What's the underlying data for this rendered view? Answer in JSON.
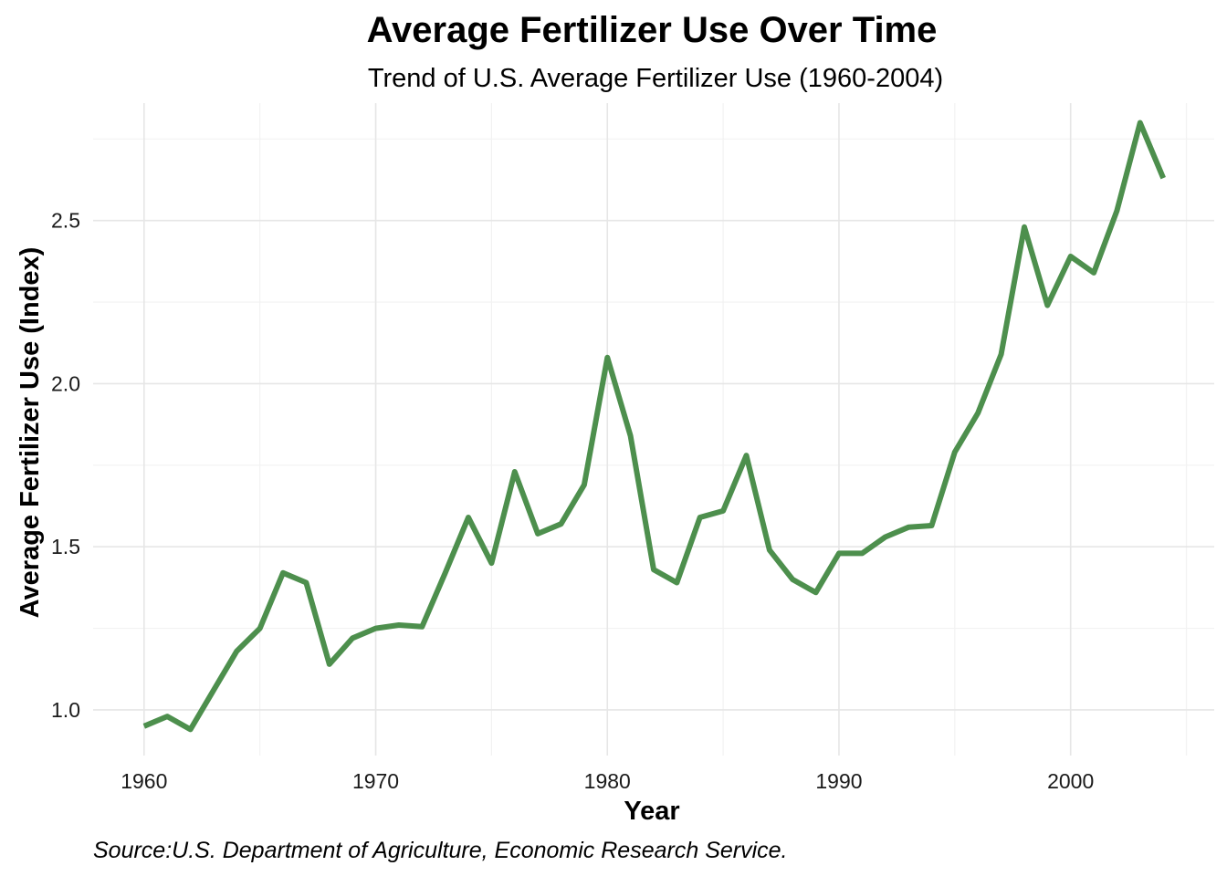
{
  "chart_data": {
    "type": "line",
    "title": "Average Fertilizer Use Over Time",
    "subtitle": "Trend of U.S. Average Fertilizer Use (1960-2004)",
    "xlabel": "Year",
    "ylabel": "Average Fertilizer Use (Index)",
    "caption": "Source:U.S. Department of Agriculture, Economic Research Service.",
    "line_color": "#4d8f4d",
    "grid": true,
    "xlim": [
      1957.8,
      2006.2
    ],
    "ylim": [
      0.86,
      2.86
    ],
    "x_ticks": [
      1960,
      1970,
      1980,
      1990,
      2000
    ],
    "y_ticks": [
      1.0,
      1.5,
      2.0,
      2.5
    ],
    "y_tick_labels": [
      "1.0",
      "1.5",
      "2.0",
      "2.5"
    ],
    "series": [
      {
        "x": [
          1960,
          1961,
          1962,
          1963,
          1964,
          1965,
          1966,
          1967,
          1968,
          1969,
          1970,
          1971,
          1972,
          1973,
          1974,
          1975,
          1976,
          1977,
          1978,
          1979,
          1980,
          1981,
          1982,
          1983,
          1984,
          1985,
          1986,
          1987,
          1988,
          1989,
          1990,
          1991,
          1992,
          1993,
          1994,
          1995,
          1996,
          1997,
          1998,
          1999,
          2000,
          2001,
          2002,
          2003,
          2004
        ],
        "values": [
          0.95,
          0.98,
          0.94,
          1.06,
          1.18,
          1.25,
          1.42,
          1.39,
          1.14,
          1.22,
          1.25,
          1.26,
          1.255,
          1.42,
          1.59,
          1.45,
          1.73,
          1.54,
          1.57,
          1.69,
          2.08,
          1.84,
          1.43,
          1.39,
          1.59,
          1.61,
          1.78,
          1.49,
          1.4,
          1.36,
          1.48,
          1.48,
          1.53,
          1.56,
          1.565,
          1.79,
          1.91,
          2.09,
          2.48,
          2.24,
          2.39,
          2.34,
          2.53,
          2.8,
          2.63
        ]
      }
    ]
  }
}
